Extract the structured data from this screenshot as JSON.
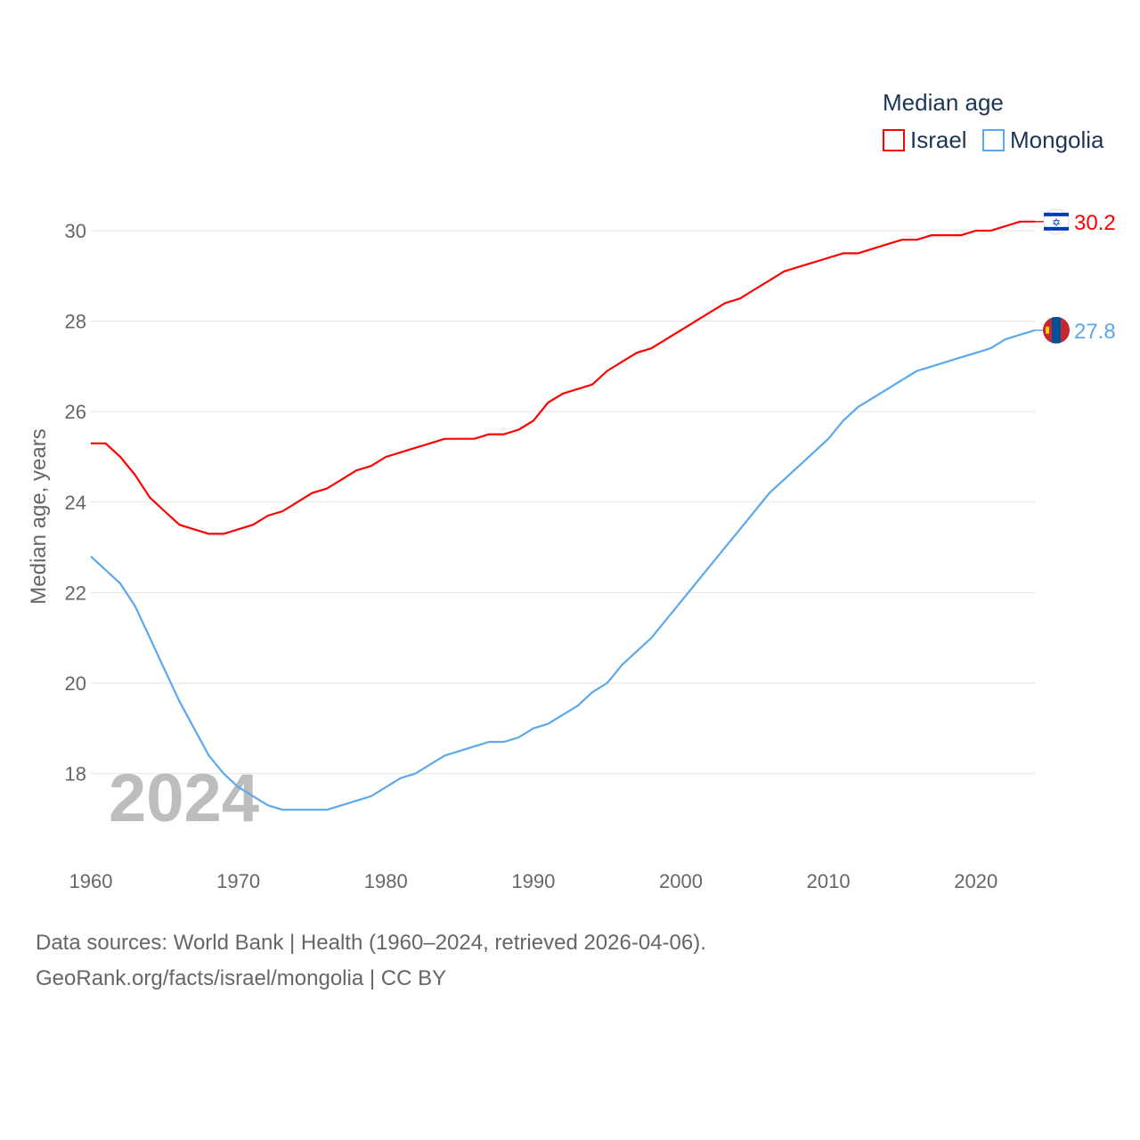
{
  "chart_data": {
    "type": "line",
    "title": "Median age",
    "xlabel": "",
    "ylabel": "Median age, years",
    "year_watermark": "2024",
    "xlim": [
      1960,
      2024
    ],
    "ylim": [
      16.8,
      31
    ],
    "x_ticks": [
      1960,
      1970,
      1980,
      1990,
      2000,
      2010,
      2020
    ],
    "y_ticks": [
      18,
      20,
      22,
      24,
      26,
      28,
      30
    ],
    "grid": true,
    "legend_position": "top-right",
    "x": [
      1960,
      1961,
      1962,
      1963,
      1964,
      1965,
      1966,
      1967,
      1968,
      1969,
      1970,
      1971,
      1972,
      1973,
      1974,
      1975,
      1976,
      1977,
      1978,
      1979,
      1980,
      1981,
      1982,
      1983,
      1984,
      1985,
      1986,
      1987,
      1988,
      1989,
      1990,
      1991,
      1992,
      1993,
      1994,
      1995,
      1996,
      1997,
      1998,
      1999,
      2000,
      2001,
      2002,
      2003,
      2004,
      2005,
      2006,
      2007,
      2008,
      2009,
      2010,
      2011,
      2012,
      2013,
      2014,
      2015,
      2016,
      2017,
      2018,
      2019,
      2020,
      2021,
      2022,
      2023,
      2024
    ],
    "series": [
      {
        "name": "Israel",
        "color": "#ff0000",
        "end_label": "30.2",
        "flag": "israel-flag",
        "values": [
          25.3,
          25.3,
          25.0,
          24.6,
          24.1,
          23.8,
          23.5,
          23.4,
          23.3,
          23.3,
          23.4,
          23.5,
          23.7,
          23.8,
          24.0,
          24.2,
          24.3,
          24.5,
          24.7,
          24.8,
          25.0,
          25.1,
          25.2,
          25.3,
          25.4,
          25.4,
          25.4,
          25.5,
          25.5,
          25.6,
          25.8,
          26.2,
          26.4,
          26.5,
          26.6,
          26.9,
          27.1,
          27.3,
          27.4,
          27.6,
          27.8,
          28.0,
          28.2,
          28.4,
          28.5,
          28.7,
          28.9,
          29.1,
          29.2,
          29.3,
          29.4,
          29.5,
          29.5,
          29.6,
          29.7,
          29.8,
          29.8,
          29.9,
          29.9,
          29.9,
          30.0,
          30.0,
          30.1,
          30.2,
          30.2
        ]
      },
      {
        "name": "Mongolia",
        "color": "#5ba8ef",
        "end_label": "27.8",
        "flag": "mongolia-flag",
        "values": [
          22.8,
          22.5,
          22.2,
          21.7,
          21.0,
          20.3,
          19.6,
          19.0,
          18.4,
          18.0,
          17.7,
          17.5,
          17.3,
          17.2,
          17.2,
          17.2,
          17.2,
          17.3,
          17.4,
          17.5,
          17.7,
          17.9,
          18.0,
          18.2,
          18.4,
          18.5,
          18.6,
          18.7,
          18.7,
          18.8,
          19.0,
          19.1,
          19.3,
          19.5,
          19.8,
          20.0,
          20.4,
          20.7,
          21.0,
          21.4,
          21.8,
          22.2,
          22.6,
          23.0,
          23.4,
          23.8,
          24.2,
          24.5,
          24.8,
          25.1,
          25.4,
          25.8,
          26.1,
          26.3,
          26.5,
          26.7,
          26.9,
          27.0,
          27.1,
          27.2,
          27.3,
          27.4,
          27.6,
          27.7,
          27.8
        ]
      }
    ]
  },
  "footer": {
    "sources": "Data sources: World Bank | Health (1960–2024, retrieved 2026-04-06).",
    "link": "GeoRank.org/facts/israel/mongolia | CC BY"
  }
}
